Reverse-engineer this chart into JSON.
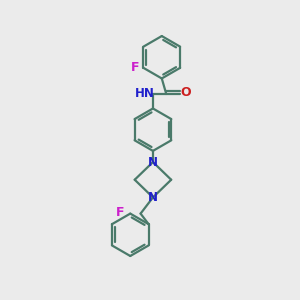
{
  "background_color": "#ebebeb",
  "bond_color": "#4a7a6a",
  "N_color": "#2020cc",
  "O_color": "#cc2020",
  "F_color": "#cc20cc",
  "line_width": 1.6,
  "figsize": [
    3.0,
    3.0
  ],
  "dpi": 100,
  "xlim": [
    0,
    10
  ],
  "ylim": [
    0,
    10
  ]
}
